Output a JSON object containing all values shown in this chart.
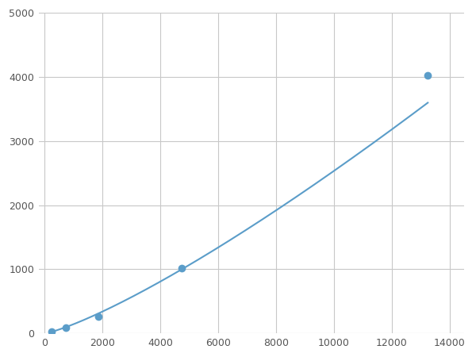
{
  "x": [
    250,
    750,
    1875,
    4750,
    13250
  ],
  "y": [
    30,
    90,
    260,
    1020,
    4020
  ],
  "line_color": "#5b9dc9",
  "marker_color": "#5b9dc9",
  "marker_size": 7,
  "line_width": 1.5,
  "xlim": [
    -200,
    14500
  ],
  "ylim": [
    0,
    5000
  ],
  "xticks": [
    0,
    2000,
    4000,
    6000,
    8000,
    10000,
    12000,
    14000
  ],
  "yticks": [
    0,
    1000,
    2000,
    3000,
    4000,
    5000
  ],
  "grid_color": "#c8c8c8",
  "background_color": "#ffffff",
  "figure_background": "#ffffff"
}
